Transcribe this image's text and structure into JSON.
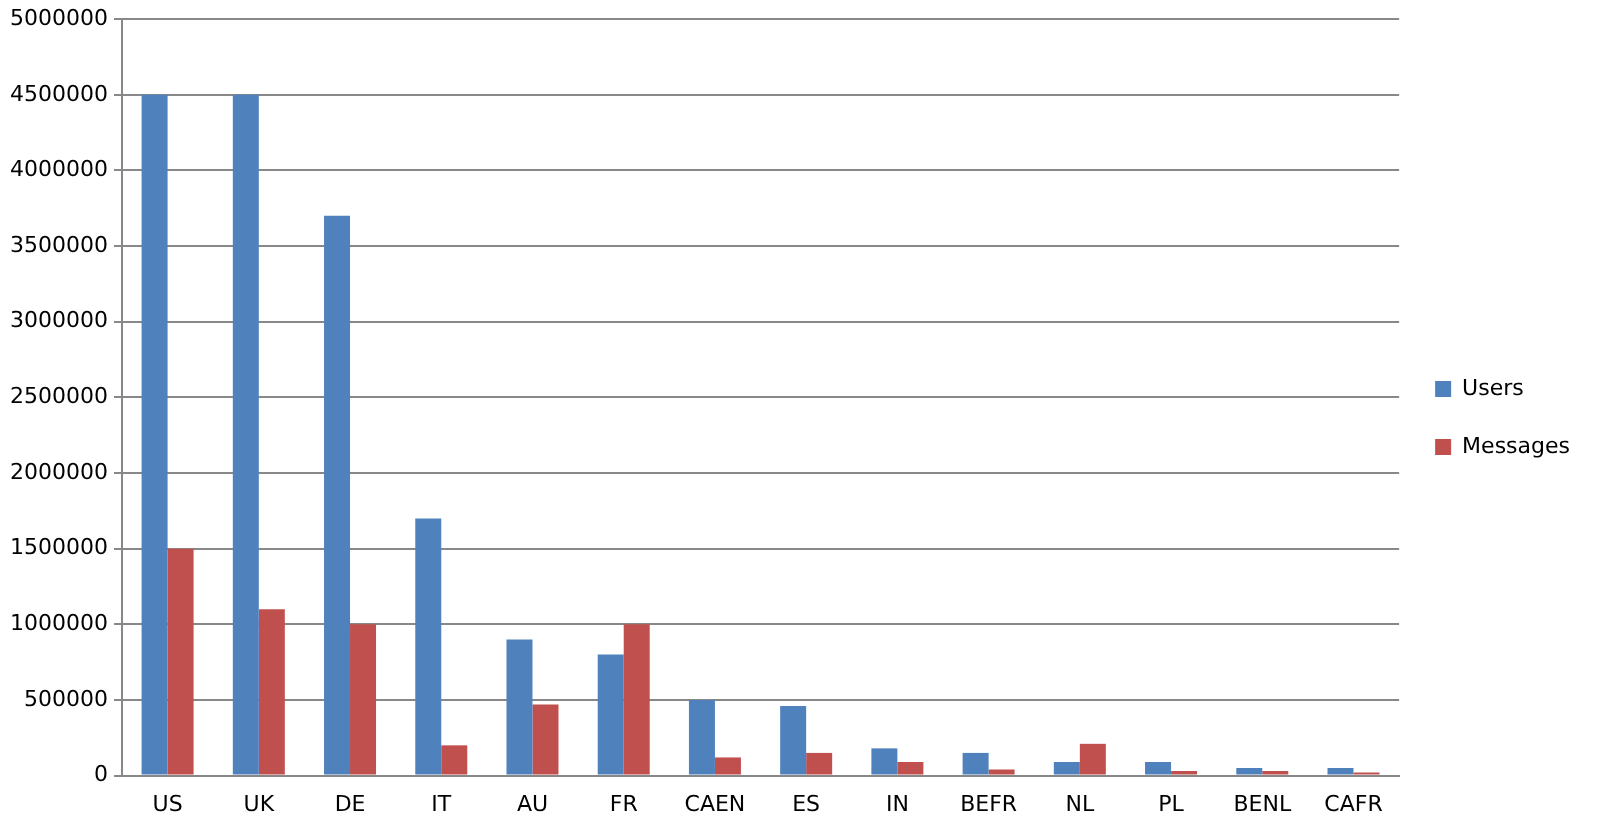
{
  "chart_data": {
    "type": "bar",
    "categories": [
      "US",
      "UK",
      "DE",
      "IT",
      "AU",
      "FR",
      "CAEN",
      "ES",
      "IN",
      "BEFR",
      "NL",
      "PL",
      "BENL",
      "CAFR"
    ],
    "series": [
      {
        "name": "Users",
        "color": "#4f81bd",
        "values": [
          4500000,
          4500000,
          3700000,
          1700000,
          900000,
          800000,
          500000,
          460000,
          180000,
          150000,
          90000,
          90000,
          50000,
          50000
        ]
      },
      {
        "name": "Messages",
        "color": "#c0504d",
        "values": [
          1500000,
          1100000,
          1000000,
          200000,
          470000,
          1000000,
          120000,
          150000,
          90000,
          40000,
          210000,
          30000,
          30000,
          20000
        ]
      }
    ],
    "ylim": [
      0,
      5000000
    ],
    "yticks": [
      0,
      500000,
      1000000,
      1500000,
      2000000,
      2500000,
      3000000,
      3500000,
      4000000,
      4500000,
      5000000
    ],
    "grid": "y",
    "legend": "right"
  }
}
